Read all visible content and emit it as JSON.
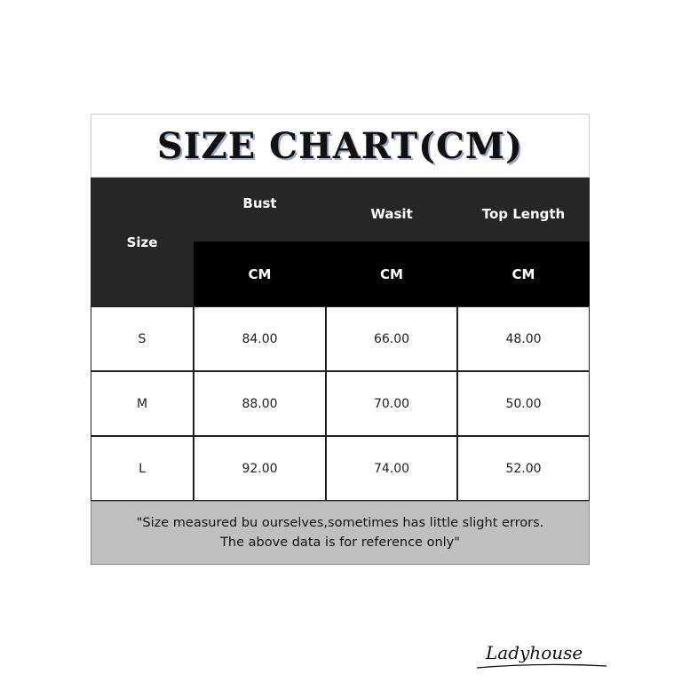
{
  "title": "SIZE CHART(CM)",
  "header": {
    "size": "Size",
    "columns": [
      "Bust",
      "Wasit",
      "Top Length"
    ],
    "units": [
      "CM",
      "CM",
      "CM"
    ]
  },
  "rows": [
    {
      "size": "S",
      "values": [
        "84.00",
        "66.00",
        "48.00"
      ]
    },
    {
      "size": "M",
      "values": [
        "88.00",
        "70.00",
        "50.00"
      ]
    },
    {
      "size": "L",
      "values": [
        "92.00",
        "74.00",
        "52.00"
      ]
    }
  ],
  "note": {
    "line1": "\"Size measured bu ourselves,sometimes has little slight errors.",
    "line2": "The above data is for reference only\""
  },
  "logo": "Ladyhouse"
}
